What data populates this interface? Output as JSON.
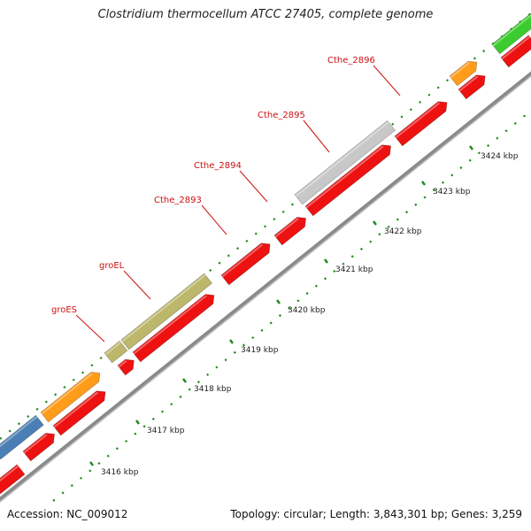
{
  "title": "Clostridium thermocellum ATCC 27405, complete genome",
  "footer": {
    "accession": "Accession: NC_009012",
    "summary": "Topology: circular; Length: 3,843,301 bp; Genes: 3,259"
  },
  "colors": {
    "cds": "#ee1111",
    "olive": "#bdb76b",
    "gray": "#c8c8c8",
    "orange": "#ff9c1a",
    "blue": "#4a7fb5",
    "green": "#3dcc2f",
    "backbone": "#888888",
    "tick": "#1f8a1f",
    "label": "#cc1111"
  },
  "kbp_labels": [
    "3416 kbp",
    "3417 kbp",
    "3418 kbp",
    "3419 kbp",
    "3420 kbp",
    "3421 kbp",
    "3422 kbp",
    "3423 kbp",
    "3424 kbp"
  ],
  "gene_labels": [
    "groES",
    "groEL",
    "Cthe_2893",
    "Cthe_2894",
    "Cthe_2895",
    "Cthe_2896"
  ]
}
